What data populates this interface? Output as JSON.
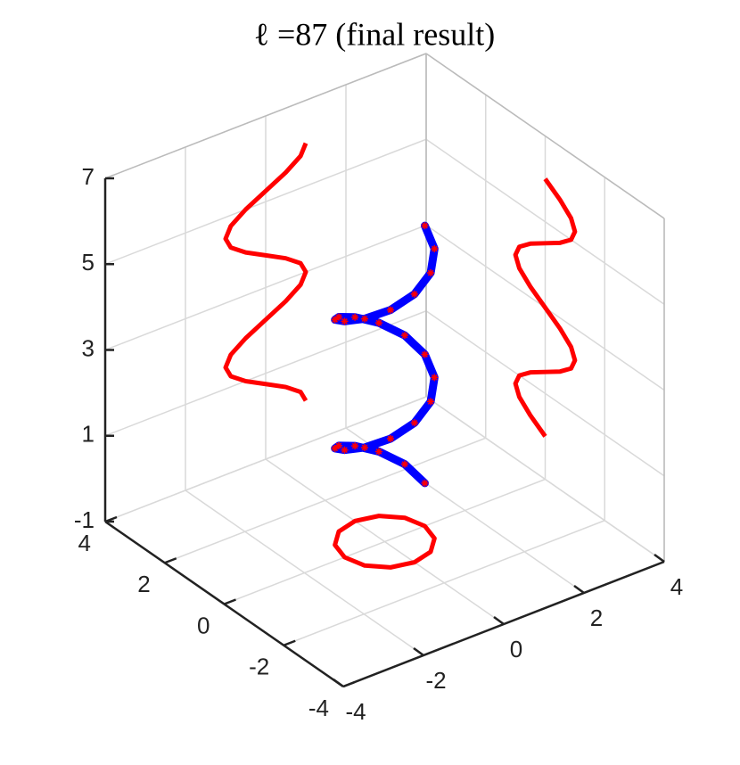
{
  "chart_data": {
    "type": "line3d",
    "title": "ℓ =87 (final result)",
    "xlim": [
      -4,
      4
    ],
    "ylim": [
      -4,
      4
    ],
    "zlim": [
      -1,
      7
    ],
    "xticks": [
      -4,
      -2,
      0,
      2,
      4
    ],
    "yticks": [
      -4,
      -2,
      0,
      2,
      4
    ],
    "zticks": [
      -1,
      1,
      3,
      5,
      7
    ],
    "grid": true,
    "projections": true,
    "series": [
      {
        "color": "#0000ff",
        "marker_color": "#ff0000",
        "projection_color": "#ff0000",
        "x": [
          1,
          0.87,
          0.5,
          0,
          -0.5,
          -0.87,
          -1,
          -0.87,
          -0.5,
          0,
          0.5,
          0.87,
          1,
          0.87,
          0.5,
          0,
          -0.5,
          -0.87,
          -1,
          -0.87,
          -0.5,
          0,
          0.5,
          0.87,
          1
        ],
        "y": [
          0,
          0.5,
          0.87,
          1,
          0.87,
          0.5,
          0,
          -0.5,
          -0.87,
          -1,
          -0.87,
          -0.5,
          0,
          0.5,
          0.87,
          1,
          0.87,
          0.5,
          0,
          -0.5,
          -0.87,
          -1,
          -0.87,
          -0.5,
          0
        ],
        "z": [
          0,
          0.25,
          0.5,
          0.75,
          1,
          1.25,
          1.5,
          1.75,
          2,
          2.25,
          2.5,
          2.75,
          3,
          3.25,
          3.5,
          3.75,
          4,
          4.25,
          4.5,
          4.75,
          5,
          5.25,
          5.5,
          5.75,
          6
        ]
      }
    ]
  }
}
